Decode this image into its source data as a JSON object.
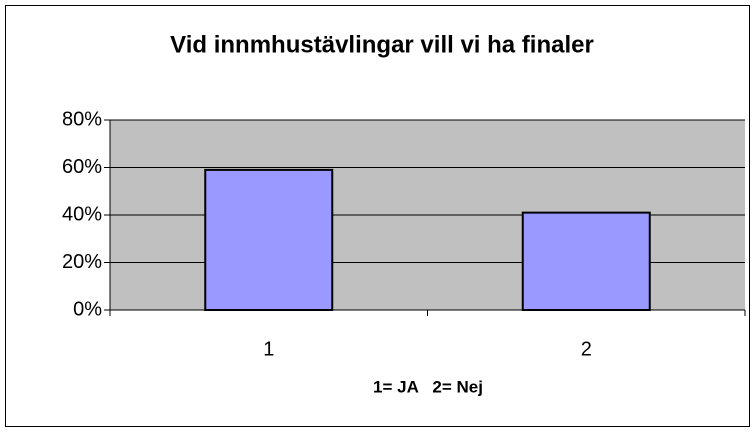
{
  "chart_data": {
    "type": "bar",
    "title": "Vid innmhustävlingar vill vi ha finaler",
    "x_label": "1= JA   2= Nej",
    "categories": [
      "1",
      "2"
    ],
    "values": [
      59,
      41
    ],
    "color": "#9999ff",
    "ylim": [
      0,
      80
    ],
    "yticks": [
      {
        "value": 0,
        "label": "0%"
      },
      {
        "value": 20,
        "label": "20%"
      },
      {
        "value": 40,
        "label": "40%"
      },
      {
        "value": 60,
        "label": "60%"
      },
      {
        "value": 80,
        "label": "80%"
      }
    ],
    "grid": true
  }
}
